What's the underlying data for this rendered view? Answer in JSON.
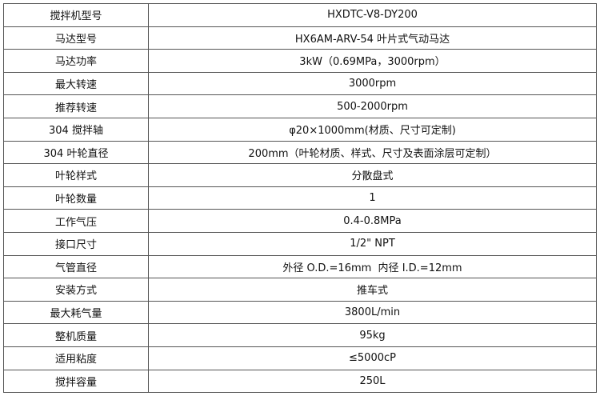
{
  "rows": [
    {
      "label": "搅拌机型号",
      "value": "HXDTC-V8-DY200"
    },
    {
      "label": "马达型号",
      "value": "HX6AM-ARV-54 叶片式气动马达"
    },
    {
      "label": "马达功率",
      "value": "3kW（0.69MPa，3000rpm）"
    },
    {
      "label": "最大转速",
      "value": "3000rpm"
    },
    {
      "label": "推荐转速",
      "value": "500-2000rpm"
    },
    {
      "label": "304 搅拌轴",
      "value": "φ20×1000mm(材质、尺寸可定制)"
    },
    {
      "label": "304 叶轮直径",
      "value": "200mm（叶轮材质、样式、尺寸及表面涂层可定制）"
    },
    {
      "label": "叶轮样式",
      "value": "分散盘式"
    },
    {
      "label": "叶轮数量",
      "value": "1"
    },
    {
      "label": "工作气压",
      "value": "0.4-0.8MPa"
    },
    {
      "label": "接口尺寸",
      "value": "1/2\" NPT"
    },
    {
      "label": "气管直径",
      "value": "外径 O.D.=16mm  内径 I.D.=12mm"
    },
    {
      "label": "安装方式",
      "value": "推车式"
    },
    {
      "label": "最大耗气量",
      "value": "3800L/min"
    },
    {
      "label": "整机质量",
      "value": "95kg"
    },
    {
      "label": "适用粘度",
      "value": "≤5000cP"
    },
    {
      "label": "搅拌容量",
      "value": "250L"
    }
  ]
}
